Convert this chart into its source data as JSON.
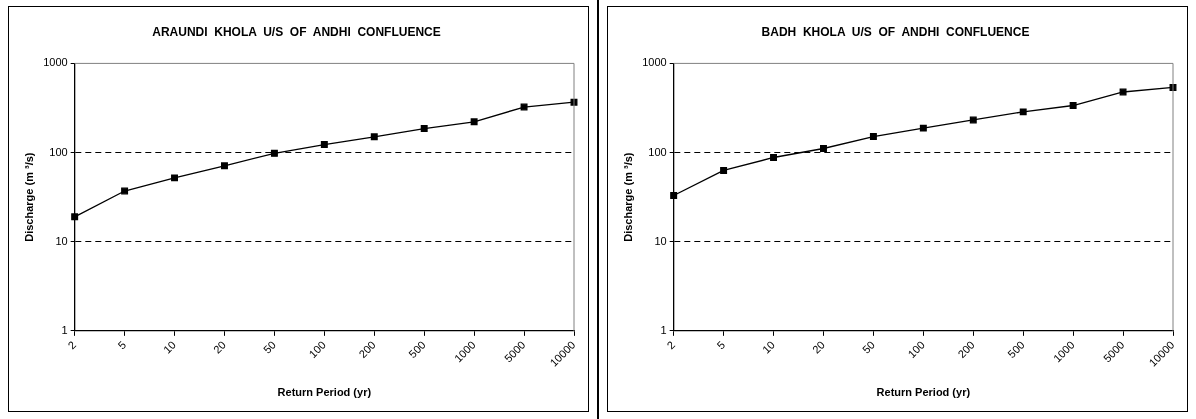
{
  "chart_data": [
    {
      "type": "line",
      "title": "ARAUNDI  KHOLA  U/S  OF  ANDHI  CONFLUENCE",
      "xlabel": "Return Period (yr)",
      "ylabel": "Discharge (m ³/s)",
      "categories": [
        "2",
        "5",
        "10",
        "20",
        "50",
        "100",
        "200",
        "500",
        "1000",
        "5000",
        "10000"
      ],
      "series": [
        {
          "color": "#000000",
          "values": [
            19,
            37,
            52,
            71,
            98,
            123,
            150,
            186,
            221,
            324,
            367
          ]
        }
      ],
      "log": "y",
      "ylim": [
        1,
        1000
      ],
      "yticks": [
        1,
        10,
        100,
        1000
      ],
      "grid": "y",
      "marker": "square",
      "line_style": "solid",
      "legend": false
    },
    {
      "type": "line",
      "title": "BADH  KHOLA  U/S  OF  ANDHI  CONFLUENCE",
      "xlabel": "Return Period (yr)",
      "ylabel": "Discharge (m ³/s)",
      "categories": [
        "2",
        "5",
        "10",
        "20",
        "50",
        "100",
        "200",
        "500",
        "1000",
        "5000",
        "10000"
      ],
      "series": [
        {
          "color": "#000000",
          "values": [
            33,
            63,
            88,
            111,
            151,
            188,
            232,
            286,
            337,
            478,
            538
          ]
        }
      ],
      "log": "y",
      "ylim": [
        1,
        1000
      ],
      "yticks": [
        1,
        10,
        100,
        1000
      ],
      "grid": "y",
      "marker": "square",
      "line_style": "solid",
      "legend": false
    }
  ]
}
